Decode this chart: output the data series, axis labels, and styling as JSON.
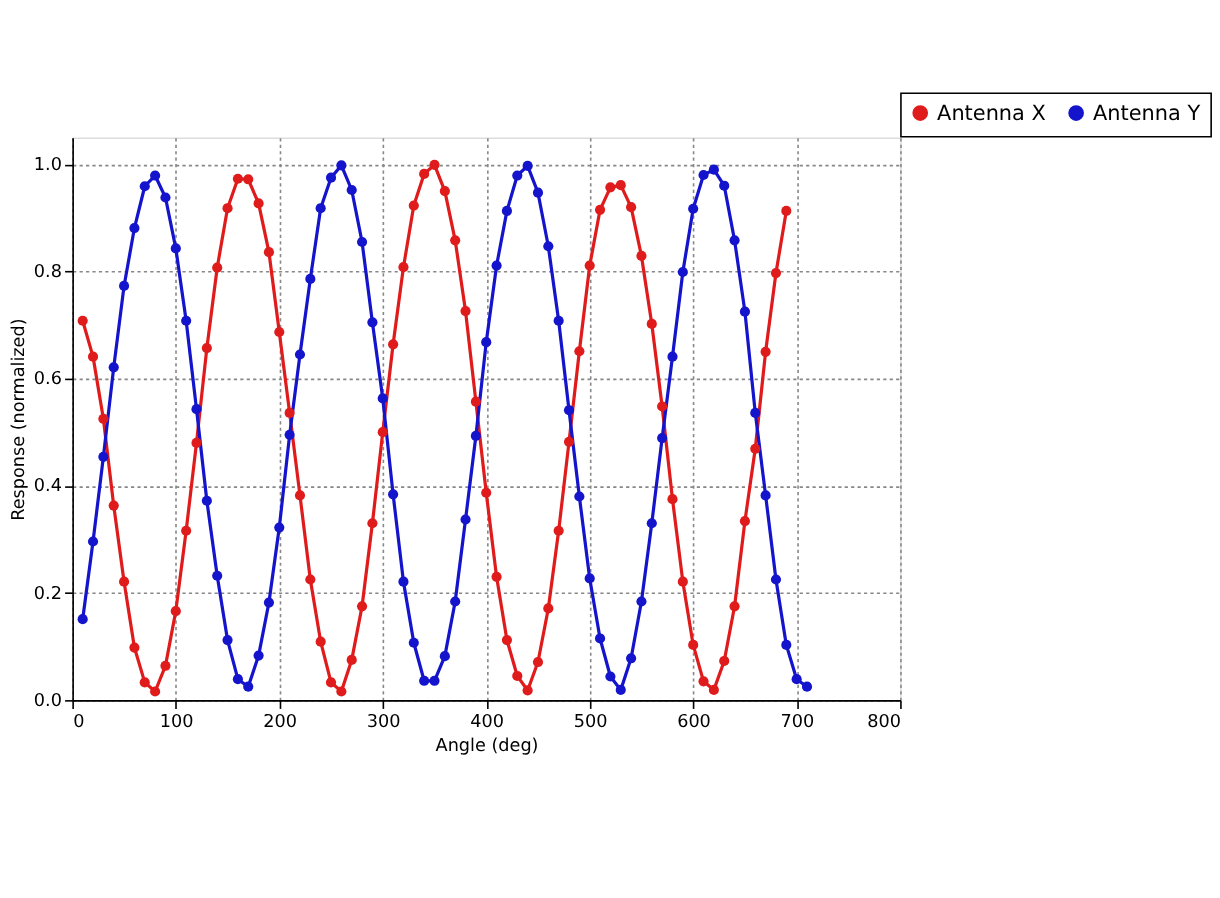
{
  "chart_data": {
    "type": "line",
    "xlabel": "Angle (deg)",
    "ylabel": "Response (normalized)",
    "xlim": [
      0,
      800
    ],
    "xticks": [
      0,
      100,
      200,
      300,
      400,
      500,
      600,
      700,
      800
    ],
    "ylim": [
      0,
      1.05
    ],
    "yticks": [
      {
        "value": 0,
        "label": "0.0"
      },
      0.2,
      0.4,
      0.6,
      0.8,
      {
        "value": 1,
        "label": "1.0"
      }
    ],
    "grid": true,
    "legend": "top right",
    "marker": "circle",
    "line_style": "solid",
    "series": [
      {
        "name": "Antenna X",
        "color": "#e01b1b",
        "x": [
          10,
          20,
          30,
          40,
          50,
          60,
          70,
          80,
          90,
          100,
          110,
          120,
          130,
          140,
          150,
          160,
          170,
          180,
          190,
          200,
          210,
          220,
          230,
          240,
          250,
          260,
          270,
          280,
          290,
          300,
          310,
          320,
          330,
          340,
          350,
          360,
          370,
          380,
          390,
          400,
          410,
          420,
          430,
          440,
          450,
          460,
          470,
          480,
          490,
          500,
          510,
          520,
          530,
          540,
          550,
          560,
          570,
          580,
          590,
          600,
          610,
          620,
          630,
          640,
          650,
          660,
          670,
          680,
          690
        ],
        "values": [
          0.708,
          0.641,
          0.525,
          0.363,
          0.221,
          0.098,
          0.033,
          0.016,
          0.064,
          0.166,
          0.316,
          0.48,
          0.657,
          0.807,
          0.918,
          0.973,
          0.972,
          0.927,
          0.836,
          0.687,
          0.536,
          0.382,
          0.225,
          0.109,
          0.033,
          0.016,
          0.075,
          0.175,
          0.33,
          0.5,
          0.664,
          0.808,
          0.923,
          0.982,
          0.999,
          0.95,
          0.858,
          0.726,
          0.557,
          0.387,
          0.23,
          0.112,
          0.045,
          0.018,
          0.071,
          0.171,
          0.316,
          0.482,
          0.651,
          0.811,
          0.915,
          0.957,
          0.961,
          0.92,
          0.829,
          0.702,
          0.548,
          0.375,
          0.221,
          0.103,
          0.035,
          0.019,
          0.073,
          0.175,
          0.334,
          0.469,
          0.65,
          0.797,
          0.913
        ]
      },
      {
        "name": "Antenna Y",
        "color": "#1414cc",
        "x": [
          10,
          20,
          30,
          40,
          50,
          60,
          70,
          80,
          90,
          100,
          110,
          120,
          130,
          140,
          150,
          160,
          170,
          180,
          190,
          200,
          210,
          220,
          230,
          240,
          250,
          260,
          270,
          280,
          290,
          300,
          310,
          320,
          330,
          340,
          350,
          360,
          370,
          380,
          390,
          400,
          410,
          420,
          430,
          440,
          450,
          460,
          470,
          480,
          490,
          500,
          510,
          520,
          530,
          540,
          550,
          560,
          570,
          580,
          590,
          600,
          610,
          620,
          630,
          640,
          650,
          660,
          670,
          680,
          690,
          700,
          710
        ],
        "values": [
          0.151,
          0.296,
          0.454,
          0.621,
          0.773,
          0.881,
          0.959,
          0.979,
          0.938,
          0.843,
          0.708,
          0.543,
          0.372,
          0.232,
          0.112,
          0.039,
          0.025,
          0.083,
          0.182,
          0.322,
          0.495,
          0.645,
          0.786,
          0.918,
          0.975,
          0.998,
          0.952,
          0.855,
          0.705,
          0.563,
          0.384,
          0.221,
          0.107,
          0.036,
          0.036,
          0.082,
          0.184,
          0.337,
          0.493,
          0.668,
          0.811,
          0.913,
          0.979,
          0.997,
          0.947,
          0.847,
          0.708,
          0.541,
          0.38,
          0.227,
          0.115,
          0.044,
          0.019,
          0.078,
          0.184,
          0.33,
          0.489,
          0.641,
          0.799,
          0.917,
          0.98,
          0.99,
          0.96,
          0.858,
          0.725,
          0.536,
          0.382,
          0.225,
          0.103,
          0.039,
          0.025
        ]
      }
    ]
  }
}
